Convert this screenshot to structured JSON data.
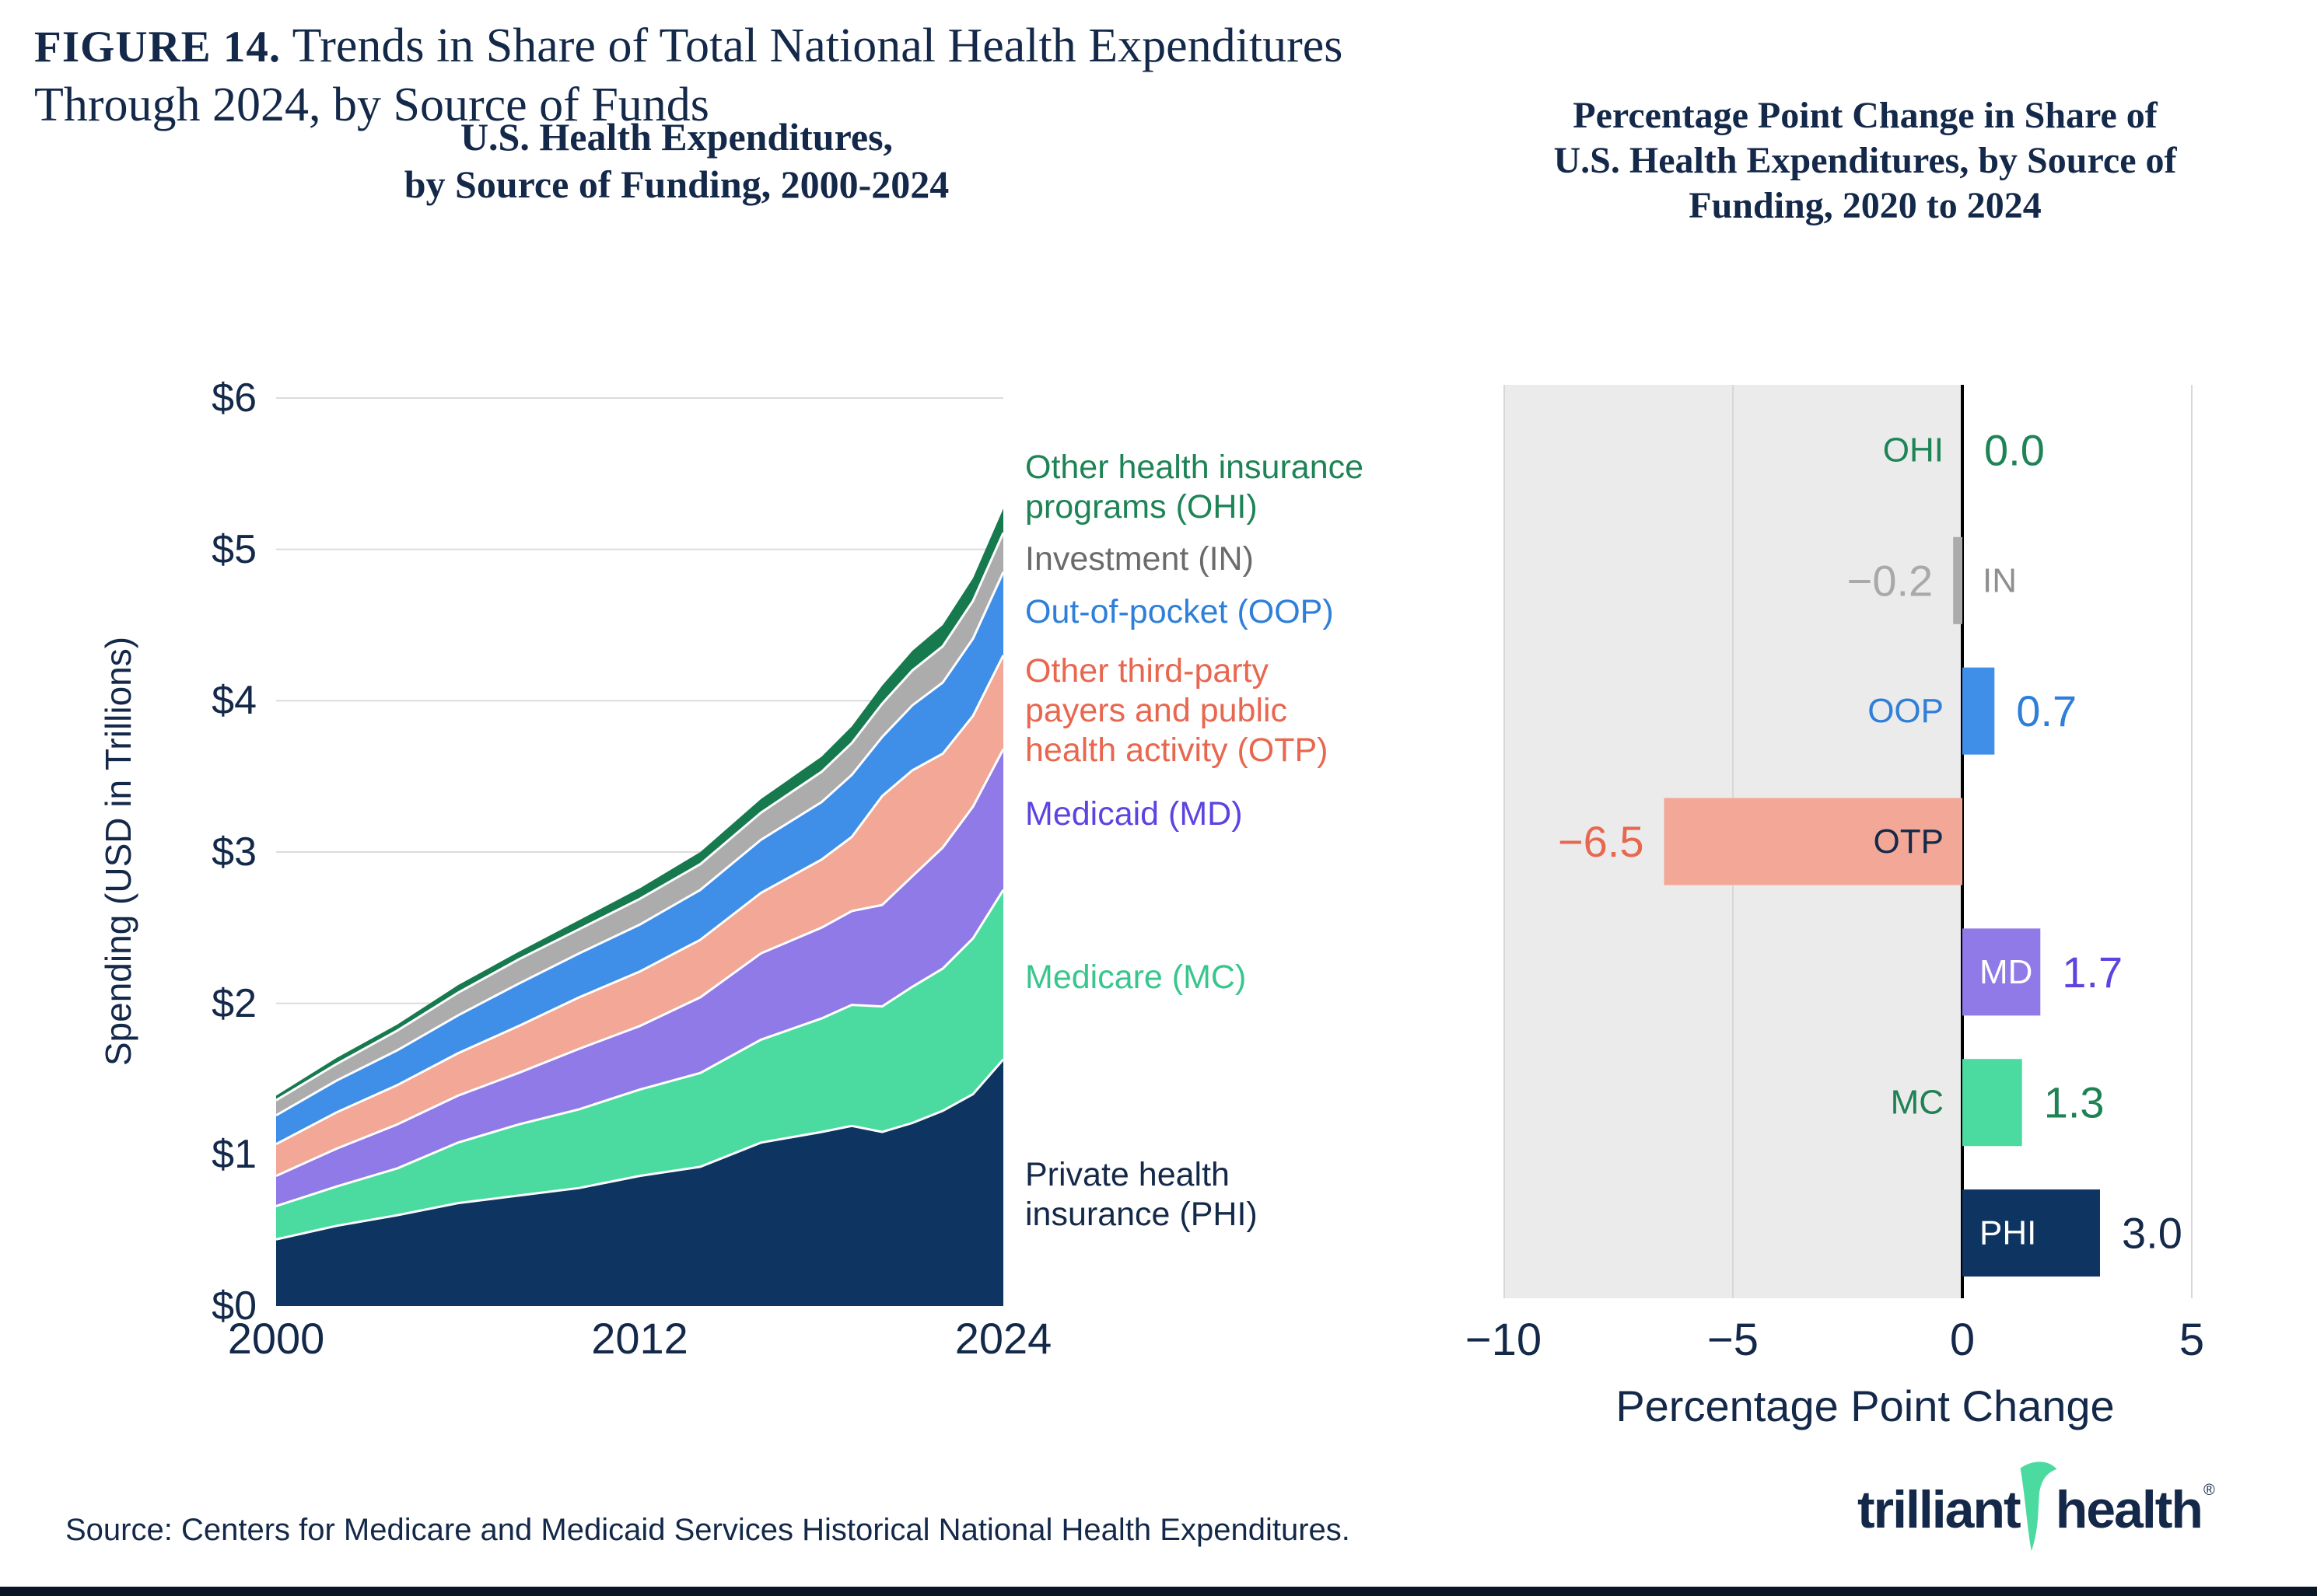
{
  "theme": {
    "navy_text": "#14294A",
    "brand_navy": "#0E3561",
    "brand_teal": "#4BDBA1",
    "gridline": "#DCDCDC",
    "shade_region": "#EBEBEB",
    "zero_axis": "#000000",
    "background": "#FFFFFF"
  },
  "figure": {
    "label": "FIGURE 14.",
    "title_line1": "Trends in Share of Total National Health Expenditures",
    "title_line2": "Through 2024, by Source of Funds"
  },
  "source_note": "Source: Centers for Medicare and Medicaid Services Historical National Health Expenditures.",
  "logo": {
    "word1": "trilliant",
    "word2": "health",
    "registered": "®"
  },
  "chart_data": [
    {
      "type": "area",
      "title": "U.S. Health Expenditures,\nby Source of Funding, 2000-2024",
      "ylabel": "Spending (USD in Trillions)",
      "unit": "USD Trillions",
      "xlim": [
        2000,
        2024
      ],
      "ylim": [
        0,
        6
      ],
      "x_ticks": [
        2000,
        2012,
        2024
      ],
      "y_tick_labels": [
        "$0",
        "$1",
        "$2",
        "$3",
        "$4",
        "$5",
        "$6"
      ],
      "grid": "horizontal",
      "years": [
        2000,
        2002,
        2004,
        2006,
        2008,
        2010,
        2012,
        2014,
        2016,
        2018,
        2019,
        2020,
        2021,
        2022,
        2023,
        2024
      ],
      "series": [
        {
          "abbr": "PHI",
          "name": "Private health insurance",
          "color": "#0E3561",
          "values": [
            0.44,
            0.53,
            0.6,
            0.68,
            0.73,
            0.78,
            0.86,
            0.92,
            1.08,
            1.15,
            1.19,
            1.15,
            1.21,
            1.29,
            1.4,
            1.63
          ]
        },
        {
          "abbr": "MC",
          "name": "Medicare",
          "color": "#4BDBA1",
          "values": [
            0.22,
            0.26,
            0.31,
            0.4,
            0.47,
            0.52,
            0.57,
            0.62,
            0.68,
            0.75,
            0.8,
            0.83,
            0.9,
            0.94,
            1.03,
            1.12
          ]
        },
        {
          "abbr": "MD",
          "name": "Medicaid",
          "color": "#8F7AE8",
          "values": [
            0.2,
            0.25,
            0.29,
            0.31,
            0.34,
            0.4,
            0.42,
            0.5,
            0.57,
            0.6,
            0.62,
            0.67,
            0.73,
            0.8,
            0.87,
            0.93
          ]
        },
        {
          "abbr": "OTP",
          "name": "Other third-party payers and public health activity",
          "color": "#F3A796",
          "values": [
            0.21,
            0.24,
            0.26,
            0.28,
            0.31,
            0.34,
            0.36,
            0.38,
            0.4,
            0.45,
            0.49,
            0.72,
            0.7,
            0.62,
            0.6,
            0.62
          ]
        },
        {
          "abbr": "OOP",
          "name": "Out-of-pocket",
          "color": "#3F8EE8",
          "values": [
            0.19,
            0.21,
            0.23,
            0.25,
            0.28,
            0.29,
            0.31,
            0.33,
            0.35,
            0.38,
            0.41,
            0.39,
            0.43,
            0.47,
            0.51,
            0.55
          ]
        },
        {
          "abbr": "IN",
          "name": "Investment",
          "color": "#ACACAC",
          "values": [
            0.1,
            0.11,
            0.13,
            0.15,
            0.16,
            0.16,
            0.17,
            0.17,
            0.18,
            0.2,
            0.21,
            0.22,
            0.23,
            0.24,
            0.25,
            0.26
          ]
        },
        {
          "abbr": "OHI",
          "name": "Other health insurance programs",
          "color": "#177A4F",
          "values": [
            0.03,
            0.04,
            0.04,
            0.05,
            0.05,
            0.06,
            0.07,
            0.08,
            0.09,
            0.1,
            0.11,
            0.12,
            0.13,
            0.14,
            0.15,
            0.16
          ]
        }
      ],
      "legend": [
        {
          "abbr": "OHI",
          "label": "Other health insurance\nprograms (OHI)",
          "color": "#1E8456"
        },
        {
          "abbr": "IN",
          "label": "Investment (IN)",
          "color": "#6B6B6B"
        },
        {
          "abbr": "OOP",
          "label": "Out-of-pocket (OOP)",
          "color": "#2E7FD9"
        },
        {
          "abbr": "OTP",
          "label": "Other third-party\npayers and public\nhealth activity (OTP)",
          "color": "#E8674F"
        },
        {
          "abbr": "MD",
          "label": "Medicaid (MD)",
          "color": "#5B44E0"
        },
        {
          "abbr": "MC",
          "label": "Medicare (MC)",
          "color": "#38C68E"
        },
        {
          "abbr": "PHI",
          "label": "Private health\ninsurance (PHI)",
          "color": "#14294A"
        }
      ]
    },
    {
      "type": "bar",
      "title": "Percentage Point Change in Share of\nU.S. Health Expenditures, by Source of\nFunding, 2020 to 2024",
      "xlabel": "Percentage Point Change",
      "xlim": [
        -10,
        5.76
      ],
      "x_ticks": [
        -10,
        -5,
        0,
        5
      ],
      "x_tick_labels": [
        "−10",
        "−5",
        "0",
        "5"
      ],
      "shaded_range": [
        -10,
        0
      ],
      "categories": [
        "OHI",
        "IN",
        "OOP",
        "OTP",
        "MD",
        "MC",
        "PHI"
      ],
      "values": [
        0.0,
        -0.2,
        0.7,
        -6.5,
        1.7,
        1.3,
        3.0
      ],
      "rows": [
        {
          "abbr": "OHI",
          "value": 0.0,
          "display": "0.0",
          "bar_color": "#1E8456",
          "label_color": "#1E8456",
          "value_color": "#1E8456",
          "label_pos": "left-of-axis",
          "value_pos": "right-of-bar"
        },
        {
          "abbr": "IN",
          "value": -0.2,
          "display": "−0.2",
          "bar_color": "#ABABAB",
          "label_color": "#8F8F8F",
          "value_color": "#A9A9A9",
          "label_pos": "right-of-axis",
          "value_pos": "left-of-bar"
        },
        {
          "abbr": "OOP",
          "value": 0.7,
          "display": "0.7",
          "bar_color": "#3F8EE8",
          "label_color": "#2E7FD9",
          "value_color": "#2E7FD9",
          "label_pos": "left-of-axis",
          "value_pos": "right-of-bar"
        },
        {
          "abbr": "OTP",
          "value": -6.5,
          "display": "−6.5",
          "bar_color": "#F3A796",
          "label_color": "#14294A",
          "value_color": "#E8674F",
          "label_pos": "left-of-axis",
          "value_pos": "left-of-bar"
        },
        {
          "abbr": "MD",
          "value": 1.7,
          "display": "1.7",
          "bar_color": "#8F7AE8",
          "label_color": "#FFFFFF",
          "value_color": "#5B44E0",
          "label_pos": "inside-left",
          "value_pos": "right-of-bar"
        },
        {
          "abbr": "MC",
          "value": 1.3,
          "display": "1.3",
          "bar_color": "#4BDBA1",
          "label_color": "#1E8254",
          "value_color": "#1E8254",
          "label_pos": "left-of-axis",
          "value_pos": "right-of-bar"
        },
        {
          "abbr": "PHI",
          "value": 3.0,
          "display": "3.0",
          "bar_color": "#0E3561",
          "label_color": "#FFFFFF",
          "value_color": "#14294A",
          "label_pos": "inside-left",
          "value_pos": "right-of-bar"
        }
      ]
    }
  ]
}
